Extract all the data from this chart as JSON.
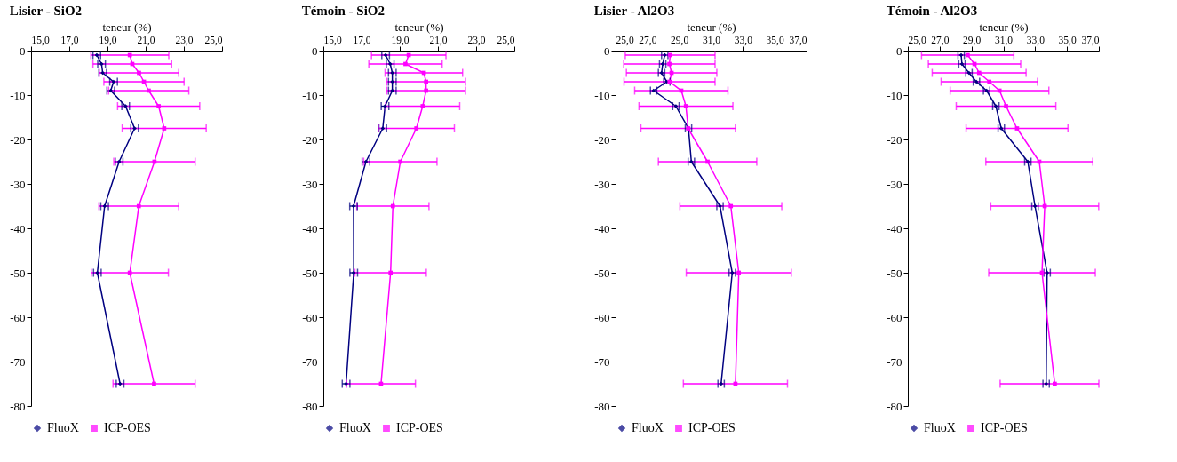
{
  "chart_data": [
    {
      "type": "line",
      "title": "Lisier - SiO2",
      "xlabel": "teneur (%)",
      "xlim": [
        15,
        25
      ],
      "xticks": [
        {
          "value": 15,
          "label": "15,0"
        },
        {
          "value": 17,
          "label": "17,0"
        },
        {
          "value": 19,
          "label": "19,0"
        },
        {
          "value": 21,
          "label": "21,0"
        },
        {
          "value": 23,
          "label": "23,0"
        },
        {
          "value": 25,
          "label": "25,0"
        }
      ],
      "ylim": [
        -80,
        0
      ],
      "yticks": [
        0,
        -10,
        -20,
        -30,
        -40,
        -50,
        -60,
        -70,
        -80
      ],
      "grid": false,
      "legend": "bottom",
      "line_style": "solid",
      "series": [
        {
          "name": "FluoX",
          "color": "#000080",
          "marker": "diamond",
          "x": [
            18.44,
            18.69,
            18.75,
            19.32,
            19.17,
            19.95,
            20.42,
            19.61,
            18.85,
            18.47,
            19.66
          ],
          "values": [
            -1,
            -3,
            -5,
            -7,
            -9,
            -12.5,
            -17.5,
            -25,
            -35,
            -50,
            -75
          ],
          "xerrors": [
            0.2,
            0.2,
            0.2,
            0.2,
            0.2,
            0.2,
            0.2,
            0.2,
            0.2,
            0.2,
            0.2
          ]
        },
        {
          "name": "ICP-OES",
          "color": "#ff00ff",
          "marker": "square",
          "x": [
            20.17,
            20.3,
            20.65,
            20.91,
            21.16,
            21.68,
            21.97,
            21.46,
            20.64,
            20.17,
            21.44
          ],
          "values": [
            -1,
            -3,
            -5,
            -7,
            -9,
            -12.5,
            -17.5,
            -25,
            -35,
            -50,
            -75
          ],
          "xerrors": [
            2.04,
            2.06,
            2.08,
            2.1,
            2.1,
            2.15,
            2.2,
            2.13,
            2.09,
            2.02,
            2.15
          ]
        }
      ]
    },
    {
      "type": "line",
      "title": "Témoin - SiO2",
      "xlabel": "teneur (%)",
      "xlim": [
        15,
        25
      ],
      "xticks": [
        {
          "value": 15,
          "label": "15,0"
        },
        {
          "value": 17,
          "label": "17,0"
        },
        {
          "value": 19,
          "label": "19,0"
        },
        {
          "value": 21,
          "label": "21,0"
        },
        {
          "value": 23,
          "label": "23,0"
        },
        {
          "value": 25,
          "label": "25,0"
        }
      ],
      "ylim": [
        -80,
        0
      ],
      "yticks": [
        0,
        -10,
        -20,
        -30,
        -40,
        -50,
        -60,
        -70,
        -80
      ],
      "grid": false,
      "legend": "bottom",
      "line_style": "solid",
      "series": [
        {
          "name": "FluoX",
          "color": "#000080",
          "marker": "diamond",
          "x": [
            18.26,
            18.5,
            18.61,
            18.61,
            18.61,
            18.23,
            18.11,
            17.23,
            16.58,
            16.59,
            16.19
          ],
          "values": [
            -1,
            -3,
            -5,
            -7,
            -9,
            -12.5,
            -17.5,
            -25,
            -35,
            -50,
            -75
          ],
          "xerrors": [
            0.2,
            0.2,
            0.2,
            0.2,
            0.2,
            0.2,
            0.2,
            0.2,
            0.2,
            0.2,
            0.2
          ]
        },
        {
          "name": "ICP-OES",
          "color": "#ff00ff",
          "marker": "square",
          "x": [
            19.47,
            19.3,
            20.26,
            20.38,
            20.38,
            20.2,
            19.87,
            19.03,
            18.64,
            18.52,
            18.02
          ],
          "values": [
            -1,
            -3,
            -5,
            -7,
            -9,
            -12.5,
            -17.5,
            -25,
            -35,
            -50,
            -75
          ],
          "xerrors": [
            1.95,
            1.92,
            2.03,
            2.06,
            2.06,
            1.94,
            1.99,
            1.92,
            1.89,
            1.87,
            1.8
          ]
        }
      ]
    },
    {
      "type": "line",
      "title": "Lisier - Al2O3",
      "xlabel": "teneur (%)",
      "xlim": [
        25,
        37
      ],
      "xticks": [
        {
          "value": 25,
          "label": "25,0"
        },
        {
          "value": 27,
          "label": "27,0"
        },
        {
          "value": 29,
          "label": "29,0"
        },
        {
          "value": 31,
          "label": "31,0"
        },
        {
          "value": 33,
          "label": "33,0"
        },
        {
          "value": 35,
          "label": "35,0"
        },
        {
          "value": 37,
          "label": "37,0"
        }
      ],
      "ylim": [
        -80,
        0
      ],
      "yticks": [
        0,
        -10,
        -20,
        -30,
        -40,
        -50,
        -60,
        -70,
        -80
      ],
      "grid": false,
      "legend": "bottom",
      "line_style": "solid",
      "series": [
        {
          "name": "FluoX",
          "color": "#000080",
          "marker": "diamond",
          "x": [
            28.09,
            27.96,
            27.89,
            28.22,
            27.39,
            28.79,
            29.58,
            29.76,
            31.56,
            32.33,
            31.63
          ],
          "values": [
            -1,
            -3,
            -5,
            -7,
            -9,
            -12.5,
            -17.5,
            -25,
            -35,
            -50,
            -75
          ],
          "xerrors": [
            0.2,
            0.2,
            0.2,
            0.2,
            0.2,
            0.2,
            0.2,
            0.2,
            0.2,
            0.2,
            0.2
          ]
        },
        {
          "name": "ICP-OES",
          "color": "#ff00ff",
          "marker": "square",
          "x": [
            28.43,
            28.38,
            28.52,
            28.39,
            29.13,
            29.42,
            29.56,
            30.78,
            32.24,
            32.74,
            32.53
          ],
          "values": [
            -1,
            -3,
            -5,
            -7,
            -9,
            -12.5,
            -17.5,
            -25,
            -35,
            -50,
            -75
          ],
          "xerrors": [
            2.82,
            2.87,
            2.84,
            2.86,
            2.93,
            2.95,
            2.97,
            3.09,
            3.2,
            3.3,
            3.27
          ]
        }
      ]
    },
    {
      "type": "line",
      "title": "Témoin - Al2O3",
      "xlabel": "teneur (%)",
      "xlim": [
        25,
        37
      ],
      "xticks": [
        {
          "value": 25,
          "label": "25,0"
        },
        {
          "value": 27,
          "label": "27,0"
        },
        {
          "value": 29,
          "label": "29,0"
        },
        {
          "value": 31,
          "label": "31,0"
        },
        {
          "value": 33,
          "label": "33,0"
        },
        {
          "value": 35,
          "label": "35,0"
        },
        {
          "value": 37,
          "label": "37,0"
        }
      ],
      "ylim": [
        -80,
        0
      ],
      "yticks": [
        0,
        -10,
        -20,
        -30,
        -40,
        -50,
        -60,
        -70,
        -80
      ],
      "grid": false,
      "legend": "bottom",
      "line_style": "solid",
      "series": [
        {
          "name": "FluoX",
          "color": "#000080",
          "marker": "diamond",
          "x": [
            28.35,
            28.4,
            28.84,
            29.31,
            29.95,
            30.53,
            30.87,
            32.54,
            32.99,
            33.75,
            33.69
          ],
          "values": [
            -1,
            -3,
            -5,
            -7,
            -9,
            -12.5,
            -17.5,
            -25,
            -35,
            -50,
            -75
          ],
          "xerrors": [
            0.2,
            0.2,
            0.2,
            0.2,
            0.2,
            0.2,
            0.2,
            0.2,
            0.2,
            0.2,
            0.2
          ]
        },
        {
          "name": "ICP-OES",
          "color": "#ff00ff",
          "marker": "square",
          "x": [
            28.76,
            29.19,
            29.48,
            30.12,
            30.76,
            31.17,
            31.86,
            33.26,
            33.6,
            33.43,
            34.23
          ],
          "values": [
            -1,
            -3,
            -5,
            -7,
            -9,
            -12.5,
            -17.5,
            -25,
            -35,
            -50,
            -75
          ],
          "xerrors": [
            2.9,
            2.9,
            2.95,
            3.03,
            3.1,
            3.13,
            3.2,
            3.36,
            3.39,
            3.35,
            [
              30.8,
              37.0
            ]
          ]
        }
      ]
    }
  ]
}
